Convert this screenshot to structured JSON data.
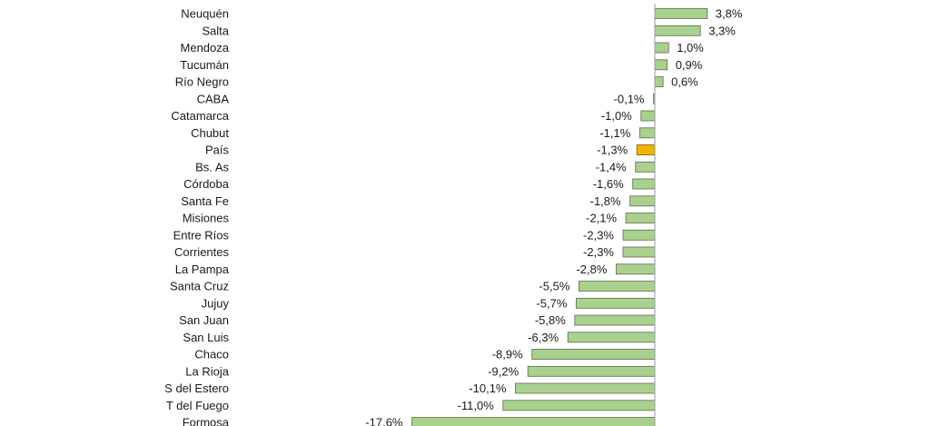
{
  "chart_data": {
    "type": "bar",
    "orientation": "horizontal",
    "title": "",
    "xlabel": "",
    "ylabel": "",
    "categories": [
      "Neuquén",
      "Salta",
      "Mendoza",
      "Tucumán",
      "Río Negro",
      "CABA",
      "Catamarca",
      "Chubut",
      "País",
      "Bs. As",
      "Córdoba",
      "Santa Fe",
      "Misiones",
      "Entre Ríos",
      "Corrientes",
      "La Pampa",
      "Santa Cruz",
      "Jujuy",
      "San Juan",
      "San Luis",
      "Chaco",
      "La Rioja",
      "S del Estero",
      "T del Fuego",
      "Formosa"
    ],
    "values": [
      3.8,
      3.3,
      1.0,
      0.9,
      0.6,
      -0.1,
      -1.0,
      -1.1,
      -1.3,
      -1.4,
      -1.6,
      -1.8,
      -2.1,
      -2.3,
      -2.3,
      -2.8,
      -5.5,
      -5.7,
      -5.8,
      -6.3,
      -8.9,
      -9.2,
      -10.1,
      -11.0,
      -17.6
    ],
    "value_labels": [
      "3,8%",
      "3,3%",
      "1,0%",
      "0,9%",
      "0,6%",
      "-0,1%",
      "-1,0%",
      "-1,1%",
      "-1,3%",
      "-1,4%",
      "-1,6%",
      "-1,8%",
      "-2,1%",
      "-2,3%",
      "-2,3%",
      "-2,8%",
      "-5,5%",
      "-5,7%",
      "-5,8%",
      "-6,3%",
      "-8,9%",
      "-9,2%",
      "-10,1%",
      "-11,0%",
      "-17,6%"
    ],
    "highlight_category": "País",
    "colors": {
      "bar": "#a9d18e",
      "bar_stroke": "#5a6b50",
      "highlight": "#f0b400",
      "highlight_stroke": "#7a5a00",
      "axis": "#9a9a9a"
    },
    "grid": false,
    "legend": "none"
  }
}
